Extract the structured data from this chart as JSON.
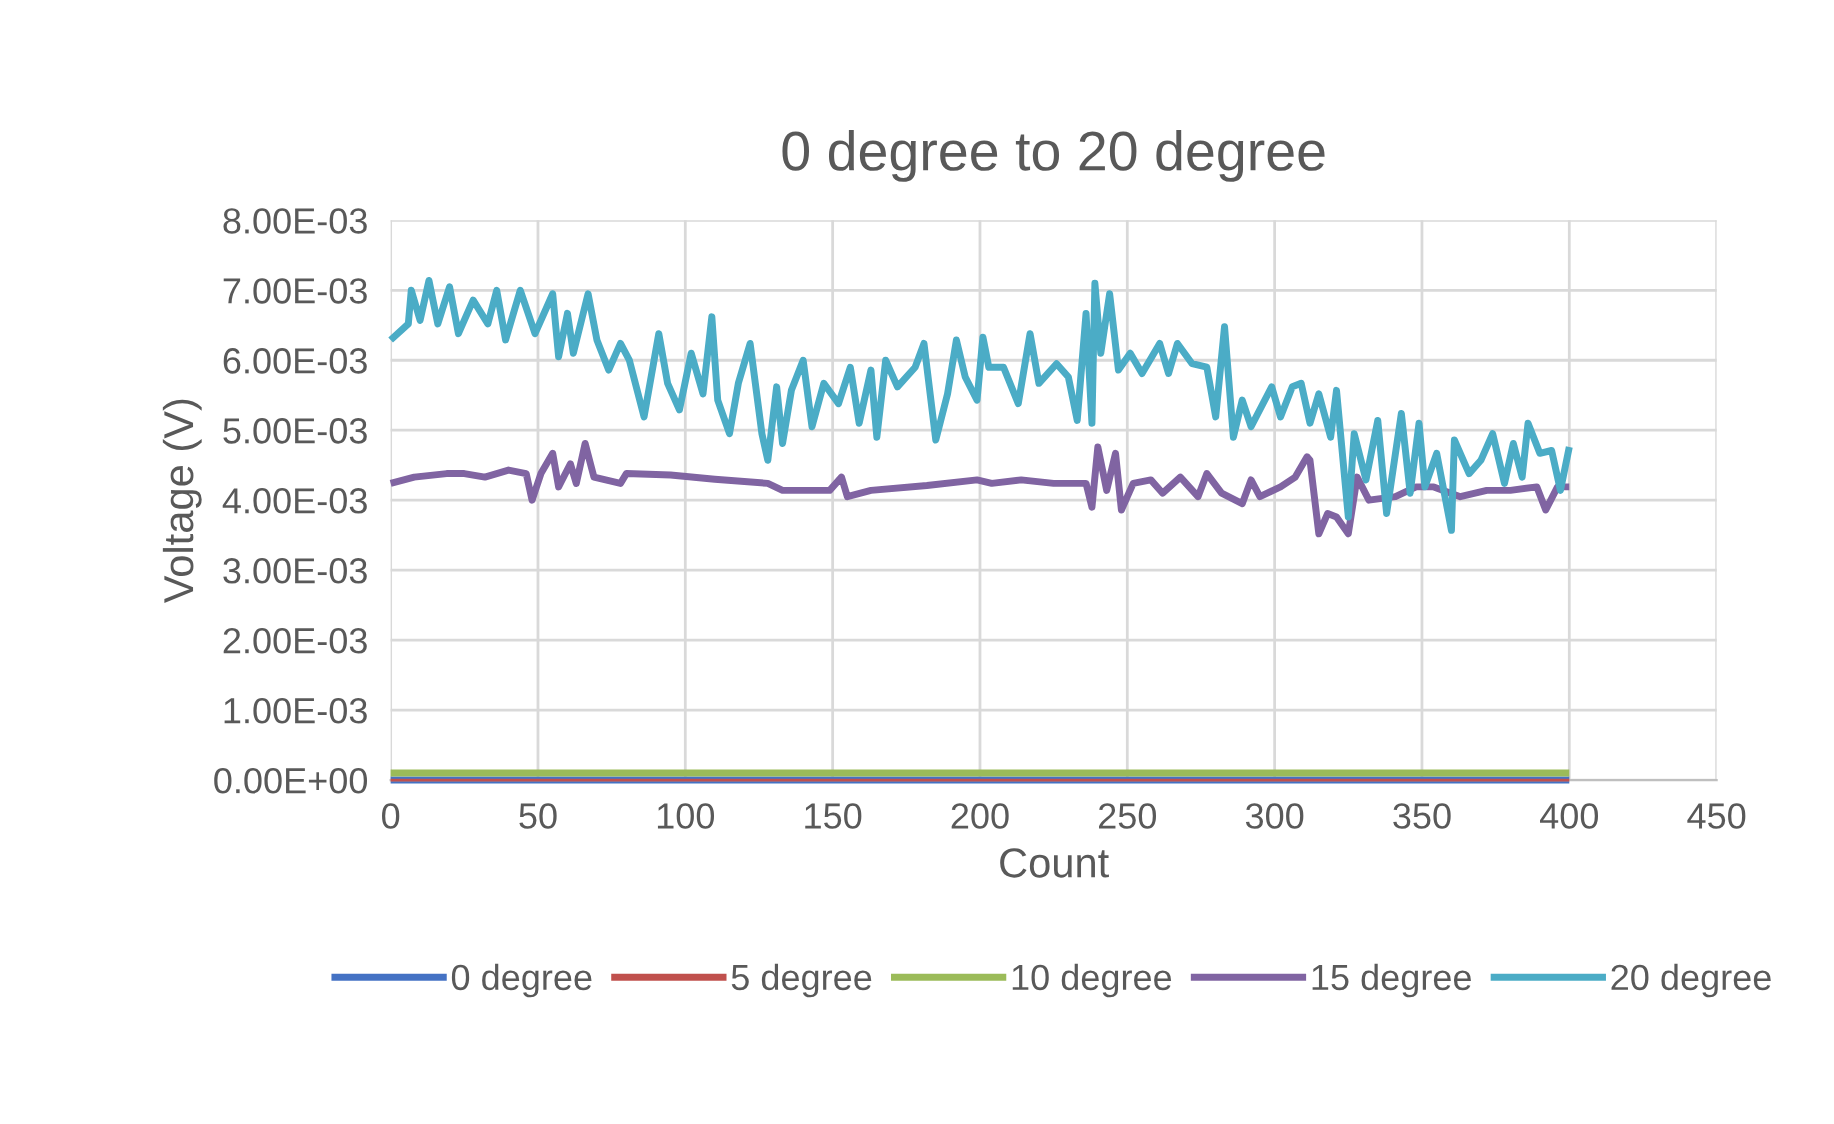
{
  "chart_data": {
    "type": "line",
    "title": "0 degree to 20 degree",
    "xlabel": "Count",
    "ylabel": "Voltage (V)",
    "xlim": [
      0,
      450
    ],
    "xticks": [
      0,
      50,
      100,
      150,
      200,
      250,
      300,
      350,
      400,
      450
    ],
    "ylim": [
      0,
      0.008
    ],
    "yticks": [
      {
        "value": 0,
        "label": "0.00E+00"
      },
      {
        "value": 0.001,
        "label": "1.00E-03"
      },
      {
        "value": 0.002,
        "label": "2.00E-03"
      },
      {
        "value": 0.003,
        "label": "3.00E-03"
      },
      {
        "value": 0.004,
        "label": "4.00E-03"
      },
      {
        "value": 0.005,
        "label": "5.00E-03"
      },
      {
        "value": 0.006,
        "label": "6.00E-03"
      },
      {
        "value": 0.007,
        "label": "7.00E-03"
      },
      {
        "value": 0.008,
        "label": "8.00E-03"
      }
    ],
    "grid": true,
    "legend": "bottom",
    "marker": "none",
    "line_style": "solid",
    "series": [
      {
        "name": "0 degree",
        "color": "#4472c4",
        "x": [
          0,
          400
        ],
        "values": [
          0,
          0
        ]
      },
      {
        "name": "5 degree",
        "color": "#c0504d",
        "x": [
          0,
          400
        ],
        "values": [
          0,
          0
        ]
      },
      {
        "name": "10 degree",
        "color": "#9bbb59",
        "x": [
          0,
          400
        ],
        "values": [
          0.0001,
          0.0001
        ]
      },
      {
        "name": "15 degree",
        "color": "#8064a2",
        "x": [
          0,
          8,
          19,
          25,
          32,
          40,
          46,
          48,
          51,
          55,
          57,
          61,
          63,
          66,
          69,
          78,
          80,
          95,
          110,
          128,
          133,
          149,
          153,
          155,
          163,
          182,
          199,
          204,
          214,
          225,
          236,
          238,
          240,
          243,
          246,
          248,
          252,
          258,
          262,
          268,
          274,
          277,
          282,
          289,
          292,
          295,
          302,
          307,
          311,
          312,
          315,
          318,
          321,
          325,
          328,
          332,
          341,
          348,
          354,
          363,
          372,
          380,
          389,
          392,
          396,
          400
        ],
        "values": [
          0.00424,
          0.00433,
          0.00438,
          0.00438,
          0.00433,
          0.00443,
          0.00438,
          0.004,
          0.00438,
          0.00467,
          0.00419,
          0.00452,
          0.00424,
          0.00481,
          0.00433,
          0.00424,
          0.00438,
          0.00436,
          0.0043,
          0.00424,
          0.00414,
          0.00414,
          0.00433,
          0.00405,
          0.00414,
          0.00421,
          0.00429,
          0.00424,
          0.00429,
          0.00424,
          0.00424,
          0.0039,
          0.00476,
          0.00414,
          0.00467,
          0.00386,
          0.00424,
          0.00429,
          0.0041,
          0.00433,
          0.00405,
          0.00438,
          0.0041,
          0.00395,
          0.00429,
          0.00405,
          0.00419,
          0.00433,
          0.00462,
          0.00457,
          0.00352,
          0.00381,
          0.00376,
          0.00352,
          0.00433,
          0.004,
          0.00405,
          0.00419,
          0.00419,
          0.00405,
          0.00414,
          0.00414,
          0.00419,
          0.00386,
          0.00419,
          0.00419
        ]
      },
      {
        "name": "20 degree",
        "color": "#4bacc6",
        "x": [
          0,
          6,
          7,
          10,
          13,
          16,
          20,
          23,
          28,
          33,
          36,
          39,
          44,
          49,
          55,
          57,
          60,
          62,
          67,
          70,
          74,
          78,
          81,
          86,
          91,
          94,
          98,
          102,
          106,
          109,
          111,
          115,
          118,
          122,
          126,
          128,
          131,
          133,
          136,
          140,
          143,
          147,
          152,
          156,
          159,
          163,
          165,
          168,
          172,
          178,
          181,
          185,
          189,
          192,
          195,
          199,
          201,
          203,
          208,
          213,
          217,
          220,
          226,
          230,
          233,
          236,
          238,
          239,
          241,
          244,
          247,
          251,
          255,
          261,
          264,
          267,
          272,
          277,
          280,
          283,
          286,
          289,
          292,
          299,
          302,
          306,
          309,
          312,
          315,
          319,
          321,
          325,
          327,
          331,
          335,
          338,
          343,
          346,
          349,
          351,
          355,
          360,
          361,
          366,
          370,
          374,
          378,
          381,
          384,
          386,
          390,
          394,
          397,
          400
        ],
        "values": [
          0.00629,
          0.00652,
          0.007,
          0.00657,
          0.00714,
          0.00652,
          0.00705,
          0.00638,
          0.00686,
          0.00652,
          0.007,
          0.00629,
          0.007,
          0.00638,
          0.00695,
          0.00605,
          0.00667,
          0.0061,
          0.00695,
          0.00629,
          0.00586,
          0.00624,
          0.006,
          0.00519,
          0.00638,
          0.00567,
          0.00529,
          0.0061,
          0.00552,
          0.00662,
          0.00543,
          0.00495,
          0.00567,
          0.00624,
          0.00495,
          0.00457,
          0.00562,
          0.00481,
          0.00557,
          0.006,
          0.00505,
          0.00567,
          0.00538,
          0.0059,
          0.0051,
          0.00586,
          0.0049,
          0.006,
          0.00562,
          0.0059,
          0.00624,
          0.00486,
          0.00552,
          0.00629,
          0.00576,
          0.00543,
          0.00633,
          0.0059,
          0.0059,
          0.00538,
          0.00638,
          0.00567,
          0.00595,
          0.00576,
          0.00514,
          0.00667,
          0.0051,
          0.0071,
          0.0061,
          0.00695,
          0.00586,
          0.0061,
          0.00581,
          0.00624,
          0.00581,
          0.00624,
          0.00595,
          0.0059,
          0.00519,
          0.00648,
          0.0049,
          0.00543,
          0.00505,
          0.00562,
          0.00519,
          0.00562,
          0.00567,
          0.0051,
          0.00552,
          0.0049,
          0.00557,
          0.00376,
          0.00495,
          0.00429,
          0.00514,
          0.00381,
          0.00524,
          0.0041,
          0.0051,
          0.00419,
          0.00467,
          0.00357,
          0.00486,
          0.00438,
          0.00457,
          0.00495,
          0.00424,
          0.00481,
          0.00433,
          0.0051,
          0.00467,
          0.00471,
          0.00414,
          0.00476
        ]
      }
    ]
  }
}
